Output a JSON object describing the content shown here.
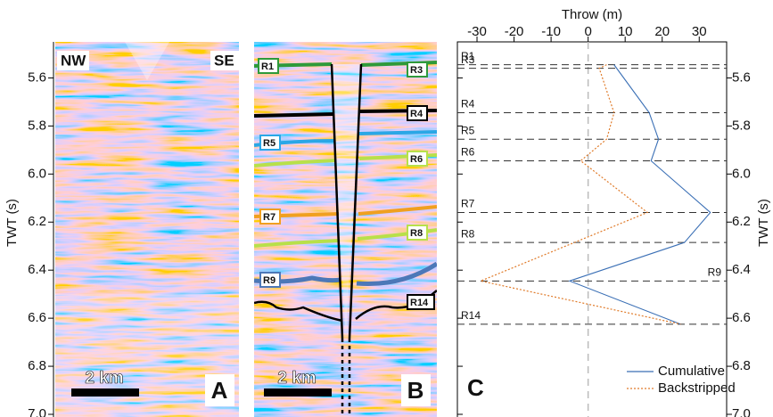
{
  "figure": {
    "left_axis": {
      "label": "TWT (s)",
      "ylim": [
        5.45,
        7.0
      ],
      "yticks": [
        5.6,
        5.8,
        {
          "value": 6.0,
          "label": "6.0"
        },
        6.2,
        6.4,
        6.6,
        6.8,
        {
          "value": 7.0,
          "label": "7.0"
        }
      ]
    },
    "panel_a": {
      "letter": "A",
      "left_label": "NW",
      "right_label": "SE",
      "scale_bar": "2 km"
    },
    "panel_b": {
      "letter": "B",
      "scale_bar": "2 km",
      "horizon_labels": [
        "R1",
        "R3",
        "R4",
        "R5",
        "R6",
        "R7",
        "R8",
        "R9",
        "R14"
      ]
    }
  },
  "chart_data": {
    "type": "line",
    "letter": "C",
    "x_label": "Throw (m)",
    "y_label": "TWT (s)",
    "xlim": [
      -35.3,
      37.4
    ],
    "xticks": [
      -30,
      -20,
      -10,
      0,
      10,
      20,
      30
    ],
    "ylim": [
      5.45,
      7.0
    ],
    "yticks": [
      5.6,
      5.8,
      {
        "value": 6.0,
        "label": "6.0"
      },
      6.2,
      6.4,
      6.6,
      6.8,
      {
        "value": 7.0,
        "label": "7.0"
      }
    ],
    "y_inverted": true,
    "legend": "lower right",
    "horizons": [
      {
        "name": "R1",
        "twt": 5.545
      },
      {
        "name": "R3",
        "twt": 5.56
      },
      {
        "name": "R4",
        "twt": 5.745
      },
      {
        "name": "R5",
        "twt": 5.855
      },
      {
        "name": "R6",
        "twt": 5.945
      },
      {
        "name": "R7",
        "twt": 6.16
      },
      {
        "name": "R8",
        "twt": 6.285
      },
      {
        "name": "R9",
        "twt": 6.445
      },
      {
        "name": "R14",
        "twt": 6.625
      }
    ],
    "series": [
      {
        "name": "Cumulative",
        "color": "#3a6fb5",
        "style": "solid",
        "x": [
          7,
          16.5,
          19,
          17,
          33,
          26,
          -5,
          25
        ],
        "y": [
          5.545,
          5.745,
          5.855,
          5.945,
          6.16,
          6.285,
          6.445,
          6.625
        ]
      },
      {
        "name": "Backstripped",
        "color": "#e07b2a",
        "style": "dotted",
        "x": [
          5,
          3,
          7,
          5,
          -2,
          16,
          -29,
          25
        ],
        "y": [
          5.545,
          5.56,
          5.745,
          5.855,
          5.945,
          6.16,
          6.445,
          6.625
        ]
      }
    ]
  }
}
